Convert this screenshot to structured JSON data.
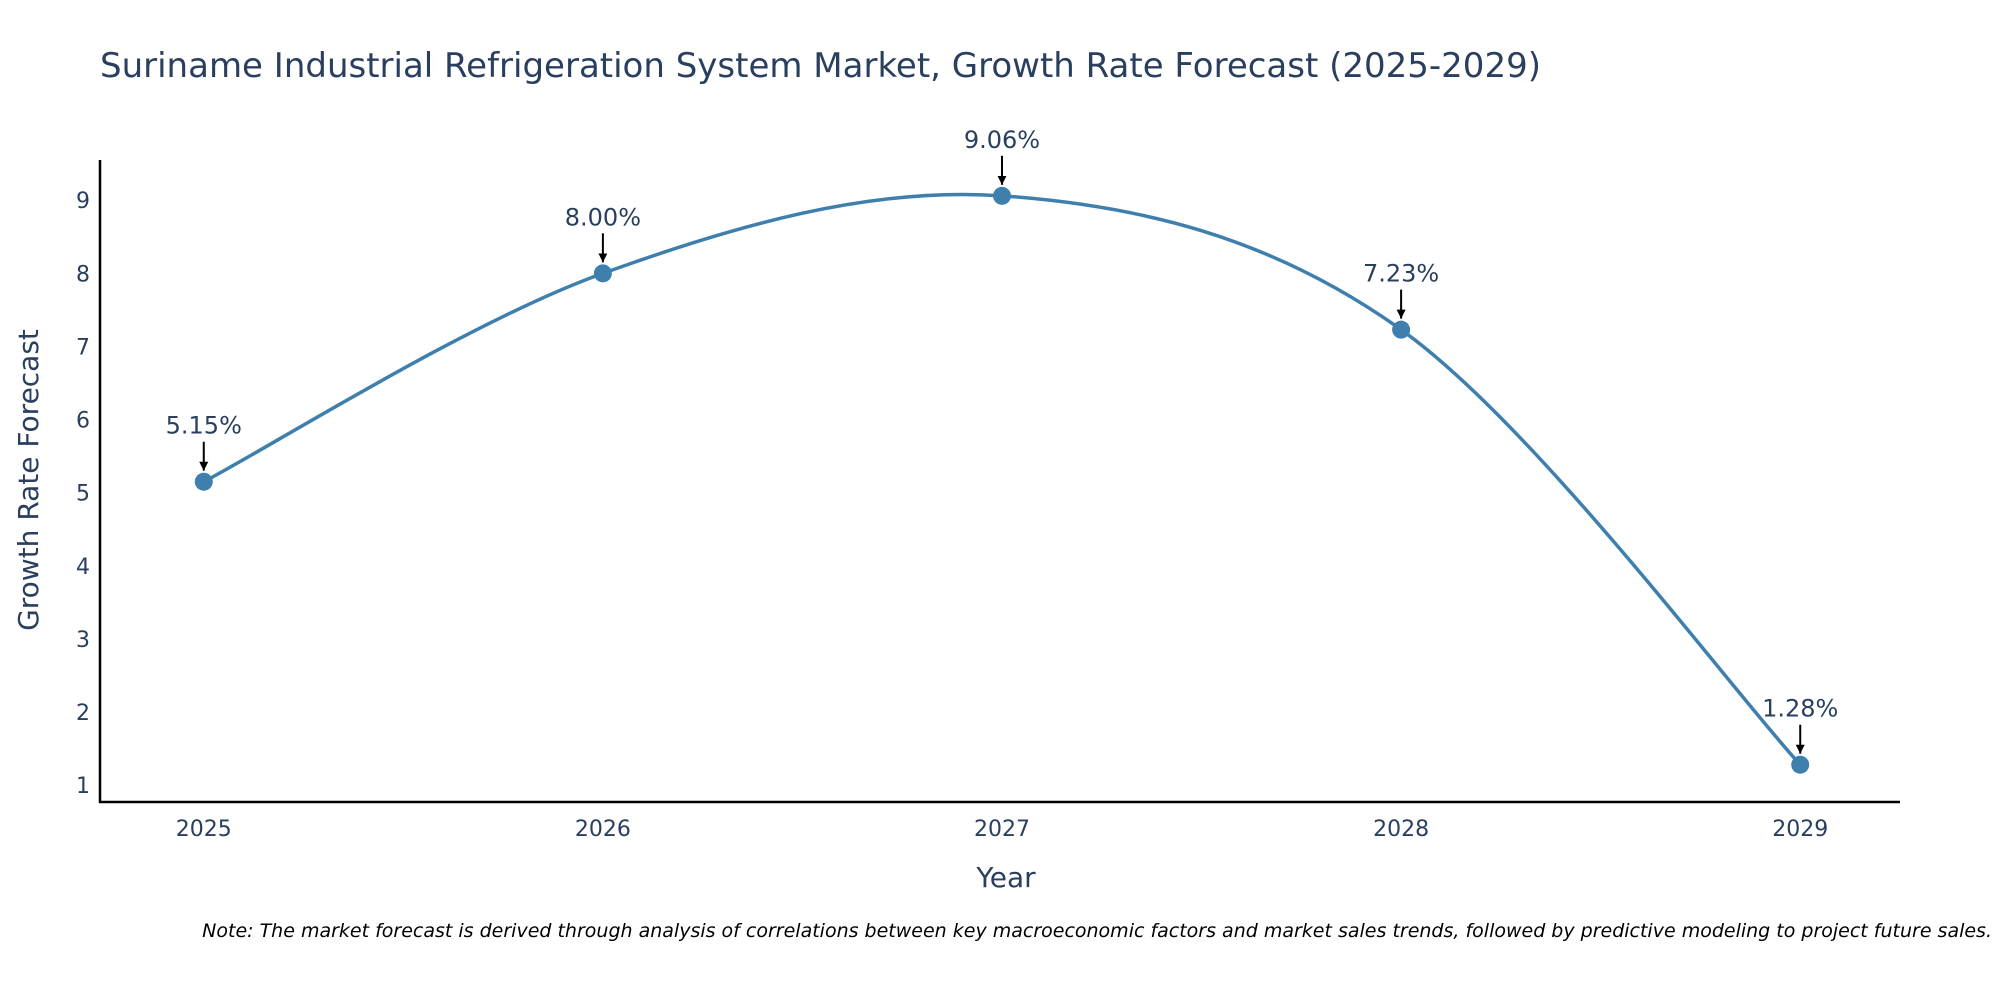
{
  "chart_data": {
    "type": "line",
    "title": "Suriname Industrial Refrigeration System Market, Growth Rate Forecast (2025-2029)",
    "xlabel": "Year",
    "ylabel": "Growth Rate Forecast",
    "categories": [
      "2025",
      "2026",
      "2027",
      "2028",
      "2029"
    ],
    "values": [
      5.15,
      8.0,
      9.06,
      7.23,
      1.28
    ],
    "data_labels": [
      "5.15%",
      "8.00%",
      "9.06%",
      "7.23%",
      "1.28%"
    ],
    "yticks": [
      1,
      2,
      3,
      4,
      5,
      6,
      7,
      8,
      9
    ],
    "ylim": [
      0.77,
      9.55
    ],
    "xlim": [
      -0.26,
      4.25
    ],
    "grid": false,
    "line_color": "#3e7fae",
    "marker_color": "#3e7fae",
    "line_shape": "spline"
  },
  "footnote": "Note: The market forecast is derived through analysis of correlations between key macroeconomic factors and market sales trends, followed by predictive modeling to project future sales."
}
